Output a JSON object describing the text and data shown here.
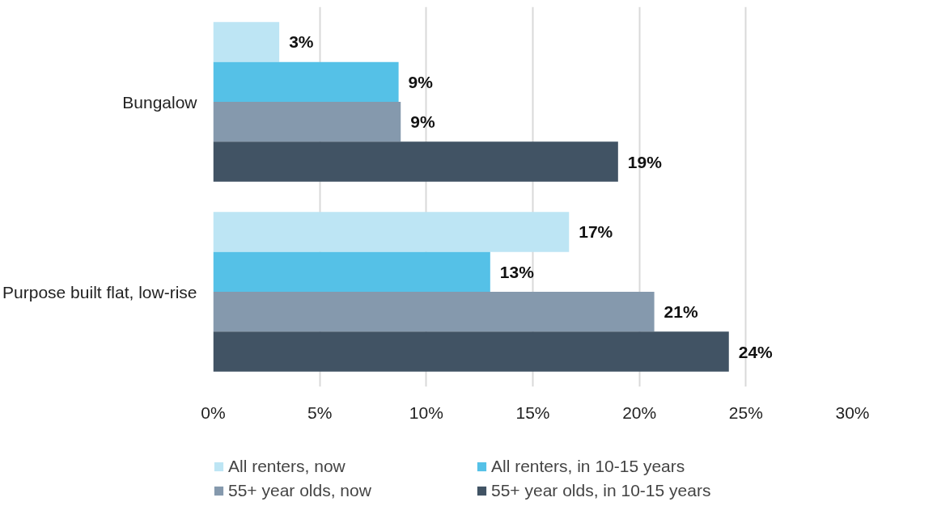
{
  "chart_data": {
    "type": "bar",
    "orientation": "horizontal",
    "categories": [
      "Bungalow",
      "Purpose built flat, low-rise"
    ],
    "series": [
      {
        "name": "All renters, now",
        "color": "#bde5f4",
        "values": [
          3.1,
          16.7
        ],
        "value_labels": [
          "3%",
          "17%"
        ]
      },
      {
        "name": "All renters, in 10-15 years",
        "color": "#55c1e7",
        "values": [
          8.7,
          13.0
        ],
        "value_labels": [
          "9%",
          "13%"
        ]
      },
      {
        "name": "55+ year olds, now",
        "color": "#8599ad",
        "values": [
          8.8,
          20.7
        ],
        "value_labels": [
          "9%",
          "21%"
        ]
      },
      {
        "name": "55+ year olds, in 10-15 years",
        "color": "#415364",
        "values": [
          19.0,
          24.2
        ],
        "value_labels": [
          "19%",
          "24%"
        ]
      }
    ],
    "xlim": [
      0,
      30
    ],
    "xticks": [
      {
        "value": 0,
        "label": "0%"
      },
      {
        "value": 5,
        "label": "5%"
      },
      {
        "value": 10,
        "label": "10%"
      },
      {
        "value": 15,
        "label": "15%"
      },
      {
        "value": 20,
        "label": "20%"
      },
      {
        "value": 25,
        "label": "25%"
      },
      {
        "value": 30,
        "label": "30%"
      }
    ],
    "grid": "x",
    "legend": "bottom"
  }
}
